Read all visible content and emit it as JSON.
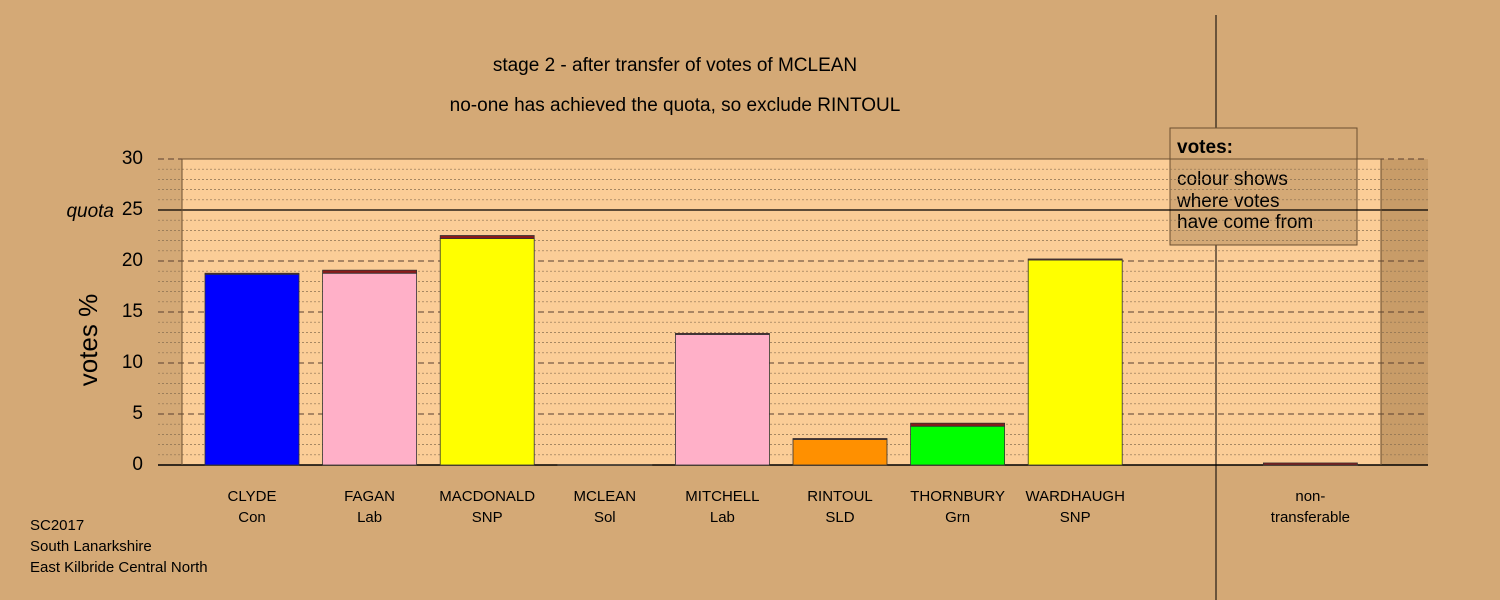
{
  "chart_data": {
    "type": "bar",
    "stacked": true,
    "title": "stage 2 - after transfer of votes of MCLEAN",
    "subtitle": "no-one has achieved the quota, so exclude RINTOUL",
    "ylabel": "votes %",
    "categories": [
      "CLYDE",
      "FAGAN",
      "MACDONALD",
      "MCLEAN",
      "MITCHELL",
      "RINTOUL",
      "THORNBURY",
      "WARDHAUGH",
      null,
      "non-"
    ],
    "parties": [
      "Con",
      "Lab",
      "SNP",
      "Sol",
      "Lab",
      "SLD",
      "Grn",
      "SNP",
      null,
      "transferable"
    ],
    "series": [
      {
        "colors": [
          "#0000ff",
          "#ffb0c8",
          "#ffff00",
          "#ffff00",
          "#ffb0c8",
          "#ff9000",
          "#00ff00",
          "#ffff00",
          null,
          "#8b1a1a"
        ],
        "values": [
          18.7,
          18.8,
          22.2,
          0,
          12.8,
          2.5,
          3.8,
          20.1,
          null,
          0
        ]
      },
      {
        "color": "#8b1a1a",
        "values": [
          0.1,
          0.3,
          0.3,
          0,
          0.1,
          0.1,
          0.3,
          0.1,
          null,
          0.2
        ]
      }
    ],
    "ylim": [
      0,
      30
    ],
    "yticks": [
      0,
      5,
      10,
      15,
      20,
      25,
      30
    ],
    "minor_yticks": [
      1,
      2,
      3,
      4,
      6,
      7,
      8,
      9,
      11,
      12,
      13,
      14,
      16,
      17,
      18,
      19,
      21,
      22,
      23,
      24,
      26,
      27,
      28,
      29
    ],
    "grid": true,
    "quota": {
      "value": 25,
      "label": "quota"
    },
    "legend": {
      "title": "votes:",
      "lines": [
        "colour shows",
        "where votes",
        "have come from"
      ]
    },
    "footnote": [
      "SC2017",
      "South Lanarkshire",
      "East Kilbride Central North"
    ]
  }
}
